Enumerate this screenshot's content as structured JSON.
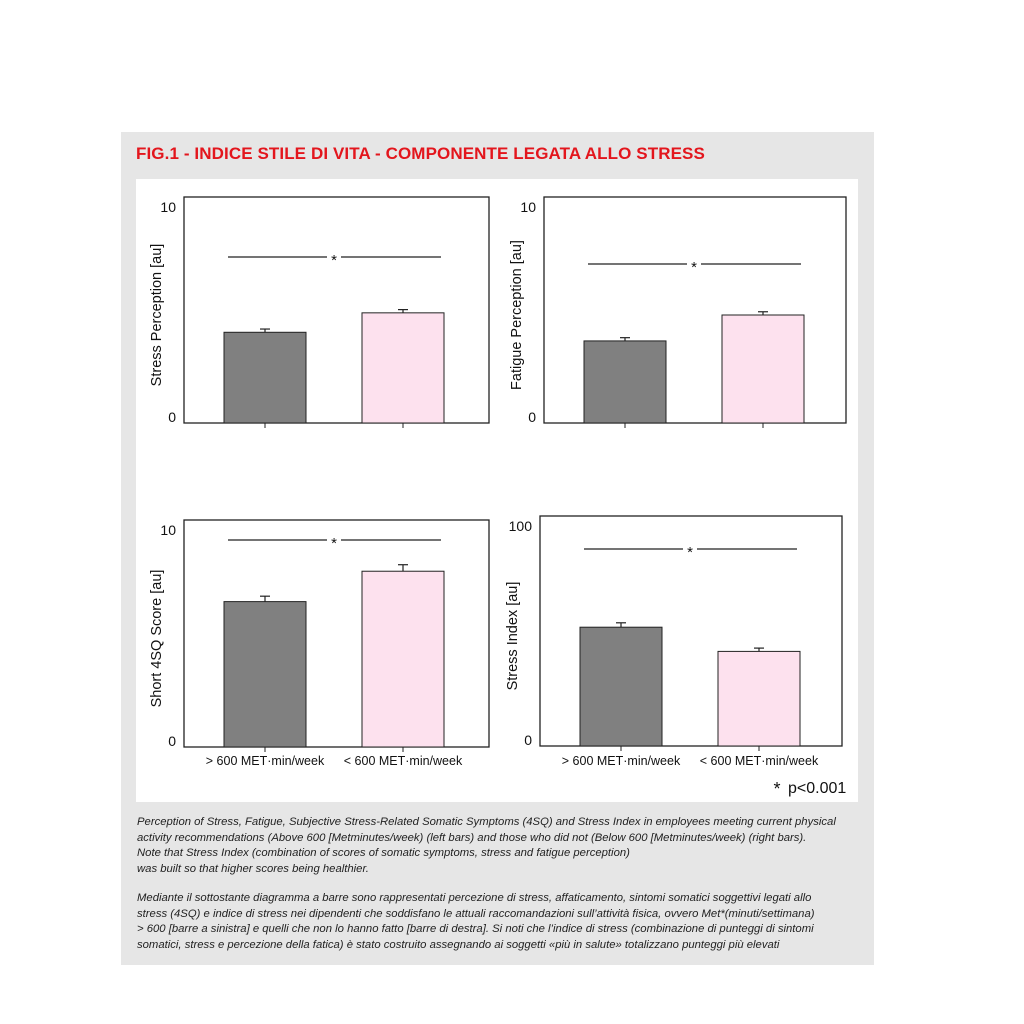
{
  "figure": {
    "title": "FIG.1 - INDICE STILE DI VITA - COMPONENTE LEGATA ALLO STRESS",
    "significance_note": "p<0.001",
    "significance_symbol": "*"
  },
  "colors": {
    "title_red": "#e3161d",
    "bar_active": "#808080",
    "bar_inactive": "#fde1ee",
    "panel_bg": "#e6e6e6"
  },
  "chart_data": [
    {
      "type": "bar",
      "ylabel": "Stress Perception [au]",
      "yticks": [
        "0",
        "10"
      ],
      "ylim": [
        0,
        10
      ],
      "categories": [
        "> 600 MET·min/week",
        "< 600 MET·min/week"
      ],
      "values": [
        4.2,
        5.1
      ],
      "errors": [
        0.15,
        0.15
      ],
      "significance": "*",
      "show_xticklabels": false
    },
    {
      "type": "bar",
      "ylabel": "Fatigue Perception [au]",
      "yticks": [
        "0",
        "10"
      ],
      "ylim": [
        0,
        10
      ],
      "categories": [
        "> 600 MET·min/week",
        "< 600 MET·min/week"
      ],
      "values": [
        3.8,
        5.0
      ],
      "errors": [
        0.15,
        0.15
      ],
      "significance": "*",
      "show_xticklabels": false
    },
    {
      "type": "bar",
      "ylabel": "Short 4SQ Score [au]",
      "yticks": [
        "0",
        "10"
      ],
      "ylim": [
        0,
        10
      ],
      "categories": [
        "> 600 MET·min/week",
        "< 600 MET·min/week"
      ],
      "values": [
        6.7,
        8.1
      ],
      "errors": [
        0.25,
        0.3
      ],
      "significance": "*",
      "show_xticklabels": true
    },
    {
      "type": "bar",
      "ylabel": "Stress Index [au]",
      "yticks": [
        "0",
        "100"
      ],
      "ylim": [
        0,
        100
      ],
      "categories": [
        "> 600 MET·min/week",
        "< 600 MET·min/week"
      ],
      "values": [
        54,
        43
      ],
      "errors": [
        2,
        1.5
      ],
      "significance": "*",
      "show_xticklabels": true
    }
  ],
  "captions": {
    "english": "Perception of Stress, Fatigue, Subjective Stress-Related Somatic Symptoms (4SQ) and Stress Index in employees meeting current physical\nactivity recommendations (Above 600 [Metminutes/week) (left bars) and those who did not (Below 600 [Metminutes/week) (right bars).\nNote that Stress Index (combination of scores of somatic symptoms, stress and fatigue perception)\nwas built so that higher scores being healthier.",
    "italian": "Mediante il sottostante diagramma a barre sono rappresentati percezione di stress, affaticamento, sintomi somatici soggettivi legati allo\nstress (4SQ) e indice di stress nei dipendenti che soddisfano le attuali raccomandazioni sull’attività fisica, ovvero Met*(minuti/settimana)\n> 600 [barre a sinistra]  e quelli che non lo hanno fatto [barre di destra]. Si noti che l’indice di stress (combinazione di punteggi di sintomi\nsomatici, stress e percezione della fatica) è stato costruito assegnando ai soggetti «più in salute» totalizzano punteggi più elevati"
  }
}
